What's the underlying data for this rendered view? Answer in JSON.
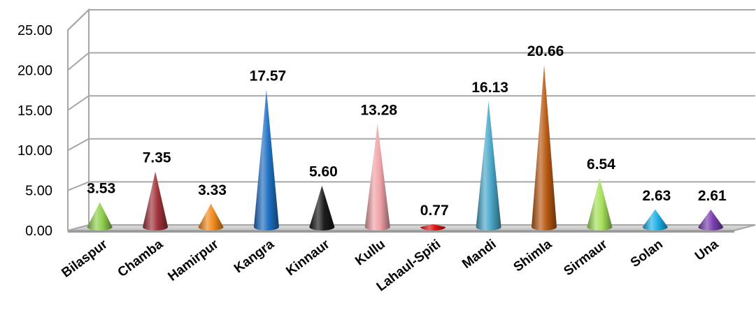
{
  "chart_data": {
    "type": "bar",
    "mark_shape": "3d-cone",
    "categories": [
      "Bilaspur",
      "Chamba",
      "Hamirpur",
      "Kangra",
      "Kinnaur",
      "Kullu",
      "Lahaul-Spiti",
      "Mandi",
      "Shimla",
      "Sirmaur",
      "Solan",
      "Una"
    ],
    "values": [
      3.53,
      7.35,
      3.33,
      17.57,
      5.6,
      13.28,
      0.77,
      16.13,
      20.66,
      6.54,
      2.63,
      2.61
    ],
    "value_labels": [
      "3.53",
      "7.35",
      "3.33",
      "17.57",
      "5.60",
      "13.28",
      "0.77",
      "16.13",
      "20.66",
      "6.54",
      "2.63",
      "2.61"
    ],
    "ytick_labels": [
      "0.00",
      "5.00",
      "10.00",
      "15.00",
      "20.00",
      "25.00"
    ],
    "ylim": [
      0,
      25
    ],
    "grid": true,
    "colors": [
      "#92d050",
      "#a0333a",
      "#f28a1e",
      "#1f6fc1",
      "#1a1a1a",
      "#f0a3a8",
      "#e01010",
      "#4ba7c9",
      "#b85a14",
      "#a5e05a",
      "#1fb0e6",
      "#7a3fb0"
    ],
    "title": "",
    "xlabel": "",
    "ylabel": ""
  }
}
